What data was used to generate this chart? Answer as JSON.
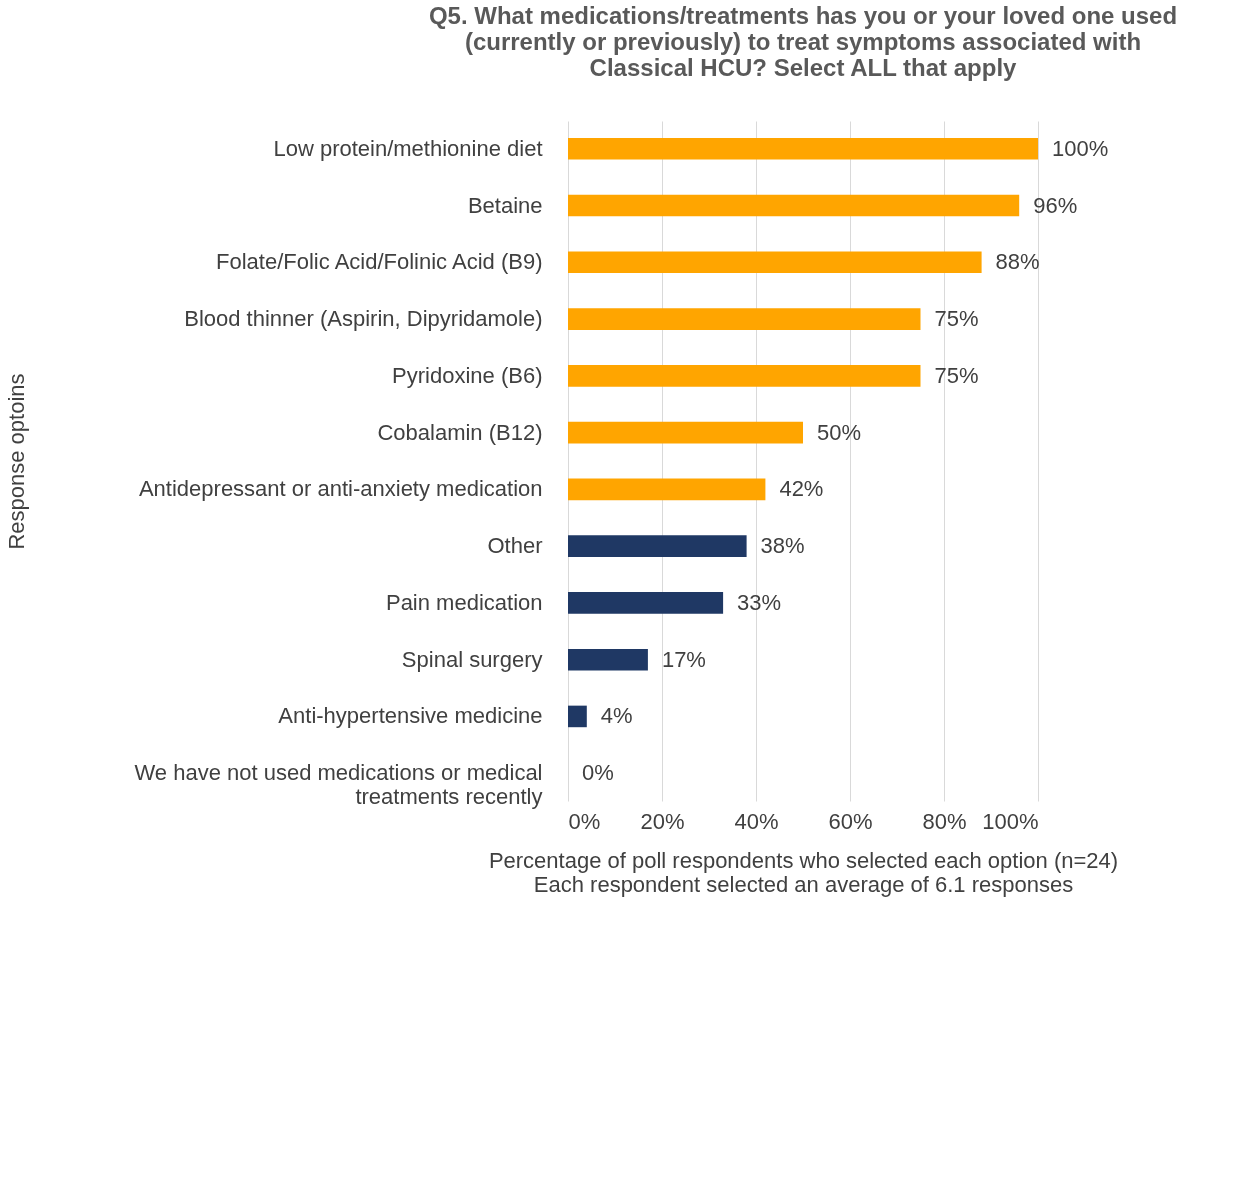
{
  "chart_data": {
    "type": "bar",
    "orientation": "horizontal",
    "title": "Q5. What medications/treatments has you or your loved one used (currently or previously) to treat symptoms associated with Classical HCU? Select ALL that apply",
    "xlabel": "Percentage of poll respondents who selected each option (n=24)",
    "ylabel": "Response optoins",
    "annotations": [
      "Each respondent selected an average of 6.1 responses"
    ],
    "categories": [
      "Low protein/methionine diet",
      "Betaine",
      "Folate/Folic Acid/Folinic Acid (B9)",
      "Blood thinner (Aspirin, Dipyridamole)",
      "Pyridoxine (B6)",
      "Cobalamin (B12)",
      "Antidepressant or anti-anxiety medication",
      "Other",
      "Pain medication",
      "Spinal surgery",
      "Anti-hypertensive medicine",
      "We have not used medications or medical treatments recently"
    ],
    "values": [
      100,
      96,
      88,
      75,
      75,
      50,
      42,
      38,
      33,
      17,
      4,
      0
    ],
    "colors": [
      "#ffa500",
      "#ffa500",
      "#ffa500",
      "#ffa500",
      "#ffa500",
      "#ffa500",
      "#ffa500",
      "#1f3864",
      "#1f3864",
      "#1f3864",
      "#1f3864",
      "#1f3864"
    ],
    "value_labels": [
      "100%",
      "96%",
      "88%",
      "75%",
      "75%",
      "50%",
      "42%",
      "38%",
      "33%",
      "17%",
      "4%",
      "0%"
    ],
    "xlim": [
      0,
      100
    ],
    "xticks": [
      {
        "value": 0,
        "label": "0%"
      },
      {
        "value": 20,
        "label": "20%"
      },
      {
        "value": 40,
        "label": "40%"
      },
      {
        "value": 60,
        "label": "60%"
      },
      {
        "value": 80,
        "label": "80%"
      },
      {
        "value": 100,
        "label": "100%"
      }
    ],
    "grid": "x"
  }
}
